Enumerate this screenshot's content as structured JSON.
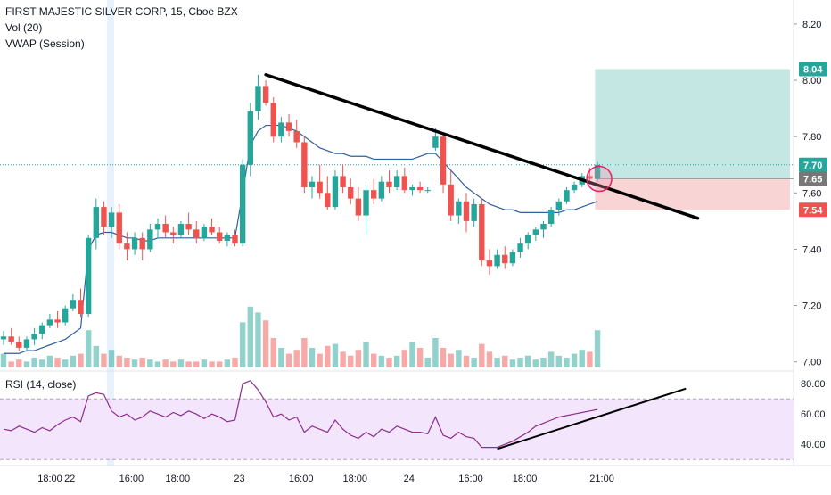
{
  "header": {
    "symbol_title": "FIRST MAJESTIC SILVER CORP, 15, Cboe BZX",
    "vol_label": "Vol (20)",
    "vwap_label": "VWAP (Session)",
    "rsi_label": "RSI (14, close)"
  },
  "colors": {
    "up": "#26a69a",
    "down": "#ef5350",
    "vwap": "#2f5f9f",
    "rsi": "#8e2d8e",
    "trendline": "#000000",
    "profit_zone": "#b2dfdb",
    "loss_zone": "#f8c9c9",
    "rsi_band": "#f3e5fb"
  },
  "chart_data": {
    "type": "candlestick",
    "price_axis": {
      "ylim": [
        6.98,
        8.26
      ],
      "ticks": [
        "8.20",
        "8.00",
        "7.80",
        "7.60",
        "7.40",
        "7.20",
        "7.00"
      ]
    },
    "price_tags": [
      {
        "text": "8.04",
        "value": 8.04,
        "color": "#26a69a"
      },
      {
        "text": "7.70",
        "value": 7.7,
        "color": "#26a69a"
      },
      {
        "text": "7.65",
        "value": 7.65,
        "color": "#777777"
      },
      {
        "text": "7.54",
        "value": 7.54,
        "color": "#ef5350"
      }
    ],
    "time_axis": {
      "labels": [
        "18:00",
        "22",
        "16:00",
        "18:00",
        "23",
        "16:00",
        "18:00",
        "24",
        "16:00",
        "18:00",
        "21:00"
      ],
      "positions": [
        0,
        8,
        16,
        22,
        30,
        38,
        45,
        52,
        60,
        67,
        77
      ]
    },
    "candles": [
      {
        "o": 7.08,
        "h": 7.11,
        "l": 7.06,
        "c": 7.09
      },
      {
        "o": 7.09,
        "h": 7.12,
        "l": 7.06,
        "c": 7.07
      },
      {
        "o": 7.07,
        "h": 7.09,
        "l": 7.04,
        "c": 7.05
      },
      {
        "o": 7.05,
        "h": 7.09,
        "l": 7.04,
        "c": 7.08
      },
      {
        "o": 7.08,
        "h": 7.12,
        "l": 7.06,
        "c": 7.1
      },
      {
        "o": 7.1,
        "h": 7.14,
        "l": 7.08,
        "c": 7.13
      },
      {
        "o": 7.13,
        "h": 7.17,
        "l": 7.12,
        "c": 7.15
      },
      {
        "o": 7.15,
        "h": 7.18,
        "l": 7.12,
        "c": 7.14
      },
      {
        "o": 7.14,
        "h": 7.2,
        "l": 7.13,
        "c": 7.19
      },
      {
        "o": 7.19,
        "h": 7.24,
        "l": 7.18,
        "c": 7.22
      },
      {
        "o": 7.22,
        "h": 7.26,
        "l": 7.16,
        "c": 7.17
      },
      {
        "o": 7.17,
        "h": 7.45,
        "l": 7.16,
        "c": 7.44
      },
      {
        "o": 7.44,
        "h": 7.58,
        "l": 7.4,
        "c": 7.55
      },
      {
        "o": 7.55,
        "h": 7.57,
        "l": 7.45,
        "c": 7.48
      },
      {
        "o": 7.48,
        "h": 7.55,
        "l": 7.44,
        "c": 7.53
      },
      {
        "o": 7.53,
        "h": 7.56,
        "l": 7.4,
        "c": 7.42
      },
      {
        "o": 7.42,
        "h": 7.46,
        "l": 7.36,
        "c": 7.4
      },
      {
        "o": 7.4,
        "h": 7.46,
        "l": 7.38,
        "c": 7.44
      },
      {
        "o": 7.44,
        "h": 7.46,
        "l": 7.36,
        "c": 7.4
      },
      {
        "o": 7.4,
        "h": 7.49,
        "l": 7.39,
        "c": 7.47
      },
      {
        "o": 7.47,
        "h": 7.51,
        "l": 7.44,
        "c": 7.49
      },
      {
        "o": 7.49,
        "h": 7.52,
        "l": 7.44,
        "c": 7.46
      },
      {
        "o": 7.46,
        "h": 7.48,
        "l": 7.42,
        "c": 7.45
      },
      {
        "o": 7.45,
        "h": 7.5,
        "l": 7.44,
        "c": 7.49
      },
      {
        "o": 7.49,
        "h": 7.53,
        "l": 7.45,
        "c": 7.47
      },
      {
        "o": 7.47,
        "h": 7.5,
        "l": 7.42,
        "c": 7.44
      },
      {
        "o": 7.44,
        "h": 7.49,
        "l": 7.43,
        "c": 7.48
      },
      {
        "o": 7.48,
        "h": 7.51,
        "l": 7.45,
        "c": 7.46
      },
      {
        "o": 7.46,
        "h": 7.48,
        "l": 7.42,
        "c": 7.43
      },
      {
        "o": 7.43,
        "h": 7.46,
        "l": 7.41,
        "c": 7.45
      },
      {
        "o": 7.45,
        "h": 7.47,
        "l": 7.41,
        "c": 7.42
      },
      {
        "o": 7.42,
        "h": 7.72,
        "l": 7.41,
        "c": 7.7
      },
      {
        "o": 7.7,
        "h": 7.92,
        "l": 7.66,
        "c": 7.89
      },
      {
        "o": 7.89,
        "h": 8.02,
        "l": 7.86,
        "c": 7.98
      },
      {
        "o": 7.98,
        "h": 8.0,
        "l": 7.91,
        "c": 7.92
      },
      {
        "o": 7.92,
        "h": 7.94,
        "l": 7.78,
        "c": 7.8
      },
      {
        "o": 7.8,
        "h": 7.87,
        "l": 7.78,
        "c": 7.85
      },
      {
        "o": 7.85,
        "h": 7.88,
        "l": 7.8,
        "c": 7.82
      },
      {
        "o": 7.82,
        "h": 7.86,
        "l": 7.76,
        "c": 7.78
      },
      {
        "o": 7.78,
        "h": 7.8,
        "l": 7.6,
        "c": 7.62
      },
      {
        "o": 7.62,
        "h": 7.66,
        "l": 7.58,
        "c": 7.64
      },
      {
        "o": 7.64,
        "h": 7.7,
        "l": 7.58,
        "c": 7.6
      },
      {
        "o": 7.6,
        "h": 7.66,
        "l": 7.54,
        "c": 7.55
      },
      {
        "o": 7.55,
        "h": 7.68,
        "l": 7.54,
        "c": 7.66
      },
      {
        "o": 7.66,
        "h": 7.7,
        "l": 7.6,
        "c": 7.62
      },
      {
        "o": 7.62,
        "h": 7.65,
        "l": 7.56,
        "c": 7.58
      },
      {
        "o": 7.58,
        "h": 7.62,
        "l": 7.5,
        "c": 7.52
      },
      {
        "o": 7.52,
        "h": 7.63,
        "l": 7.45,
        "c": 7.61
      },
      {
        "o": 7.61,
        "h": 7.65,
        "l": 7.56,
        "c": 7.58
      },
      {
        "o": 7.58,
        "h": 7.66,
        "l": 7.57,
        "c": 7.64
      },
      {
        "o": 7.64,
        "h": 7.68,
        "l": 7.6,
        "c": 7.62
      },
      {
        "o": 7.62,
        "h": 7.68,
        "l": 7.61,
        "c": 7.66
      },
      {
        "o": 7.66,
        "h": 7.69,
        "l": 7.6,
        "c": 7.61
      },
      {
        "o": 7.61,
        "h": 7.63,
        "l": 7.59,
        "c": 7.62
      },
      {
        "o": 7.62,
        "h": 7.64,
        "l": 7.6,
        "c": 7.61
      },
      {
        "o": 7.61,
        "h": 7.62,
        "l": 7.6,
        "c": 7.61
      },
      {
        "o": 7.76,
        "h": 7.83,
        "l": 7.75,
        "c": 7.8
      },
      {
        "o": 7.8,
        "h": 7.81,
        "l": 7.6,
        "c": 7.63
      },
      {
        "o": 7.63,
        "h": 7.68,
        "l": 7.5,
        "c": 7.52
      },
      {
        "o": 7.52,
        "h": 7.58,
        "l": 7.49,
        "c": 7.57
      },
      {
        "o": 7.57,
        "h": 7.6,
        "l": 7.46,
        "c": 7.5
      },
      {
        "o": 7.5,
        "h": 7.58,
        "l": 7.48,
        "c": 7.56
      },
      {
        "o": 7.56,
        "h": 7.58,
        "l": 7.34,
        "c": 7.36
      },
      {
        "o": 7.36,
        "h": 7.4,
        "l": 7.31,
        "c": 7.34
      },
      {
        "o": 7.34,
        "h": 7.4,
        "l": 7.33,
        "c": 7.38
      },
      {
        "o": 7.38,
        "h": 7.41,
        "l": 7.33,
        "c": 7.35
      },
      {
        "o": 7.35,
        "h": 7.4,
        "l": 7.34,
        "c": 7.39
      },
      {
        "o": 7.39,
        "h": 7.44,
        "l": 7.37,
        "c": 7.42
      },
      {
        "o": 7.42,
        "h": 7.46,
        "l": 7.4,
        "c": 7.45
      },
      {
        "o": 7.45,
        "h": 7.48,
        "l": 7.43,
        "c": 7.47
      },
      {
        "o": 7.47,
        "h": 7.5,
        "l": 7.44,
        "c": 7.49
      },
      {
        "o": 7.49,
        "h": 7.55,
        "l": 7.48,
        "c": 7.54
      },
      {
        "o": 7.54,
        "h": 7.58,
        "l": 7.52,
        "c": 7.57
      },
      {
        "o": 7.57,
        "h": 7.62,
        "l": 7.56,
        "c": 7.61
      },
      {
        "o": 7.61,
        "h": 7.64,
        "l": 7.6,
        "c": 7.63
      },
      {
        "o": 7.63,
        "h": 7.67,
        "l": 7.62,
        "c": 7.66
      },
      {
        "o": 7.66,
        "h": 7.69,
        "l": 7.63,
        "c": 7.65
      },
      {
        "o": 7.65,
        "h": 7.71,
        "l": 7.64,
        "c": 7.7
      }
    ],
    "volume": [
      0.14,
      0.06,
      0.08,
      0.06,
      0.1,
      0.08,
      0.12,
      0.1,
      0.08,
      0.12,
      0.14,
      0.38,
      0.22,
      0.14,
      0.18,
      0.12,
      0.1,
      0.08,
      0.1,
      0.08,
      0.06,
      0.08,
      0.06,
      0.08,
      0.06,
      0.06,
      0.08,
      0.06,
      0.06,
      0.08,
      0.1,
      0.46,
      0.62,
      0.56,
      0.48,
      0.3,
      0.2,
      0.14,
      0.18,
      0.3,
      0.2,
      0.14,
      0.22,
      0.24,
      0.16,
      0.12,
      0.18,
      0.26,
      0.14,
      0.12,
      0.1,
      0.12,
      0.18,
      0.26,
      0.2,
      0.1,
      0.3,
      0.2,
      0.14,
      0.18,
      0.12,
      0.1,
      0.24,
      0.16,
      0.1,
      0.12,
      0.08,
      0.1,
      0.12,
      0.08,
      0.1,
      0.16,
      0.12,
      0.1,
      0.14,
      0.18,
      0.16,
      0.38
    ],
    "vwap": [
      7.03,
      7.03,
      7.03,
      7.04,
      7.04,
      7.05,
      7.06,
      7.07,
      7.08,
      7.1,
      7.12,
      7.4,
      7.45,
      7.46,
      7.46,
      7.45,
      7.44,
      7.44,
      7.43,
      7.43,
      7.44,
      7.44,
      7.44,
      7.44,
      7.44,
      7.44,
      7.44,
      7.44,
      7.44,
      7.44,
      7.44,
      7.6,
      7.77,
      7.82,
      7.84,
      7.84,
      7.84,
      7.83,
      7.82,
      7.8,
      7.78,
      7.76,
      7.75,
      7.74,
      7.74,
      7.73,
      7.73,
      7.73,
      7.72,
      7.72,
      7.72,
      7.72,
      7.72,
      7.72,
      7.73,
      7.74,
      7.74,
      7.71,
      7.68,
      7.65,
      7.62,
      7.6,
      7.58,
      7.56,
      7.55,
      7.54,
      7.54,
      7.53,
      7.53,
      7.53,
      7.53,
      7.53,
      7.53,
      7.54,
      7.54,
      7.55,
      7.56,
      7.57
    ],
    "rsi": {
      "ylim": [
        26,
        86
      ],
      "ticks": [
        "80.00",
        "60.00",
        "40.00"
      ],
      "band": [
        30,
        70
      ],
      "values": [
        50,
        49,
        52,
        50,
        48,
        51,
        49,
        53,
        56,
        58,
        55,
        72,
        74,
        73,
        62,
        58,
        60,
        56,
        58,
        62,
        60,
        58,
        61,
        59,
        62,
        60,
        57,
        60,
        58,
        55,
        56,
        80,
        82,
        76,
        68,
        58,
        60,
        56,
        58,
        48,
        52,
        50,
        48,
        56,
        50,
        46,
        44,
        48,
        45,
        50,
        48,
        52,
        50,
        48,
        48,
        47,
        58,
        46,
        44,
        48,
        45,
        44,
        38,
        38,
        38,
        40,
        42,
        45,
        48,
        52,
        54,
        56,
        58,
        59,
        60,
        61,
        62,
        63
      ]
    },
    "annotations": {
      "resistance_line": {
        "from": {
          "index": 34,
          "value": 8.02
        },
        "to": {
          "index": 90,
          "value": 7.51
        }
      },
      "rsi_trend_line": {
        "from": {
          "index": 64,
          "value": 37
        },
        "to": {
          "index": 85,
          "value": 75
        }
      },
      "position": {
        "entry": 7.65,
        "target": 8.04,
        "stop": 7.54,
        "from_index": 76,
        "to_index": 90
      },
      "last_price_line": 7.7,
      "highlight_circle": {
        "index": 77,
        "value": 7.65
      }
    }
  }
}
